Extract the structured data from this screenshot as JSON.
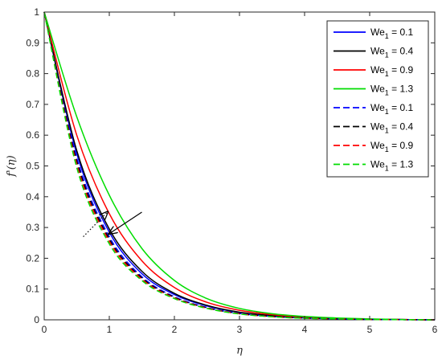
{
  "chart_data": {
    "type": "line",
    "title": "",
    "xlabel": "η",
    "ylabel": "f'(η)",
    "xlim": [
      0,
      6
    ],
    "ylim": [
      0,
      1
    ],
    "x_ticks": [
      "0",
      "1",
      "2",
      "3",
      "4",
      "5",
      "6"
    ],
    "y_ticks": [
      "0",
      "0.1",
      "0.2",
      "0.3",
      "0.4",
      "0.5",
      "0.6",
      "0.7",
      "0.8",
      "0.9",
      "1"
    ],
    "grid": false,
    "legend_position": "top-right",
    "x": [
      0,
      0.5,
      1,
      1.5,
      2,
      2.5,
      3,
      3.5,
      4,
      4.5,
      5,
      5.5,
      6
    ],
    "series": [
      {
        "name": "We1 = 0.1",
        "color": "#0000ff",
        "style": "solid",
        "values": [
          1,
          0.54,
          0.285,
          0.15,
          0.082,
          0.045,
          0.024,
          0.013,
          0.007,
          0.004,
          0.002,
          0.001,
          0
        ]
      },
      {
        "name": "We1 = 0.4",
        "color": "#000000",
        "style": "solid",
        "values": [
          1,
          0.55,
          0.295,
          0.158,
          0.086,
          0.047,
          0.025,
          0.014,
          0.007,
          0.004,
          0.002,
          0.001,
          0
        ]
      },
      {
        "name": "We1 = 0.9",
        "color": "#ff0000",
        "style": "solid",
        "values": [
          1,
          0.6,
          0.345,
          0.192,
          0.105,
          0.057,
          0.031,
          0.017,
          0.009,
          0.005,
          0.002,
          0.001,
          0
        ]
      },
      {
        "name": "We1 = 1.3",
        "color": "#00dd00",
        "style": "solid",
        "values": [
          1,
          0.66,
          0.405,
          0.232,
          0.128,
          0.069,
          0.037,
          0.02,
          0.011,
          0.006,
          0.003,
          0.001,
          0
        ]
      },
      {
        "name": "We1 = 0.1",
        "color": "#0000ff",
        "style": "dashed",
        "values": [
          1,
          0.525,
          0.27,
          0.14,
          0.075,
          0.04,
          0.021,
          0.011,
          0.006,
          0.003,
          0.001,
          0.0005,
          0
        ]
      },
      {
        "name": "We1 = 0.4",
        "color": "#000000",
        "style": "dashed",
        "values": [
          1,
          0.515,
          0.262,
          0.136,
          0.073,
          0.039,
          0.02,
          0.011,
          0.006,
          0.003,
          0.001,
          0.0005,
          0
        ]
      },
      {
        "name": "We1 = 0.9",
        "color": "#ff0000",
        "style": "dashed",
        "values": [
          1,
          0.505,
          0.255,
          0.132,
          0.071,
          0.038,
          0.02,
          0.01,
          0.005,
          0.003,
          0.001,
          0.0005,
          0
        ]
      },
      {
        "name": "We1 = 1.3",
        "color": "#00dd00",
        "style": "dashed",
        "values": [
          1,
          0.495,
          0.247,
          0.128,
          0.069,
          0.037,
          0.019,
          0.01,
          0.005,
          0.003,
          0.001,
          0.0005,
          0
        ]
      }
    ],
    "legend": [
      {
        "base": "We",
        "sub": "1",
        "suffix": " = 0.1"
      },
      {
        "base": "We",
        "sub": "1",
        "suffix": " = 0.4"
      },
      {
        "base": "We",
        "sub": "1",
        "suffix": " = 0.9"
      },
      {
        "base": "We",
        "sub": "1",
        "suffix": " = 1.3"
      },
      {
        "base": "We",
        "sub": "1",
        "suffix": " = 0.1"
      },
      {
        "base": "We",
        "sub": "1",
        "suffix": " = 0.4"
      },
      {
        "base": "We",
        "sub": "1",
        "suffix": " = 0.9"
      },
      {
        "base": "We",
        "sub": "1",
        "suffix": " = 1.3"
      }
    ],
    "annotations": [
      {
        "type": "arrow",
        "style": "solid",
        "from": [
          1.5,
          0.35
        ],
        "to": [
          1.0,
          0.28
        ]
      },
      {
        "type": "arrow",
        "style": "dotted",
        "from": [
          0.6,
          0.27
        ],
        "to": [
          0.97,
          0.35
        ]
      }
    ]
  }
}
